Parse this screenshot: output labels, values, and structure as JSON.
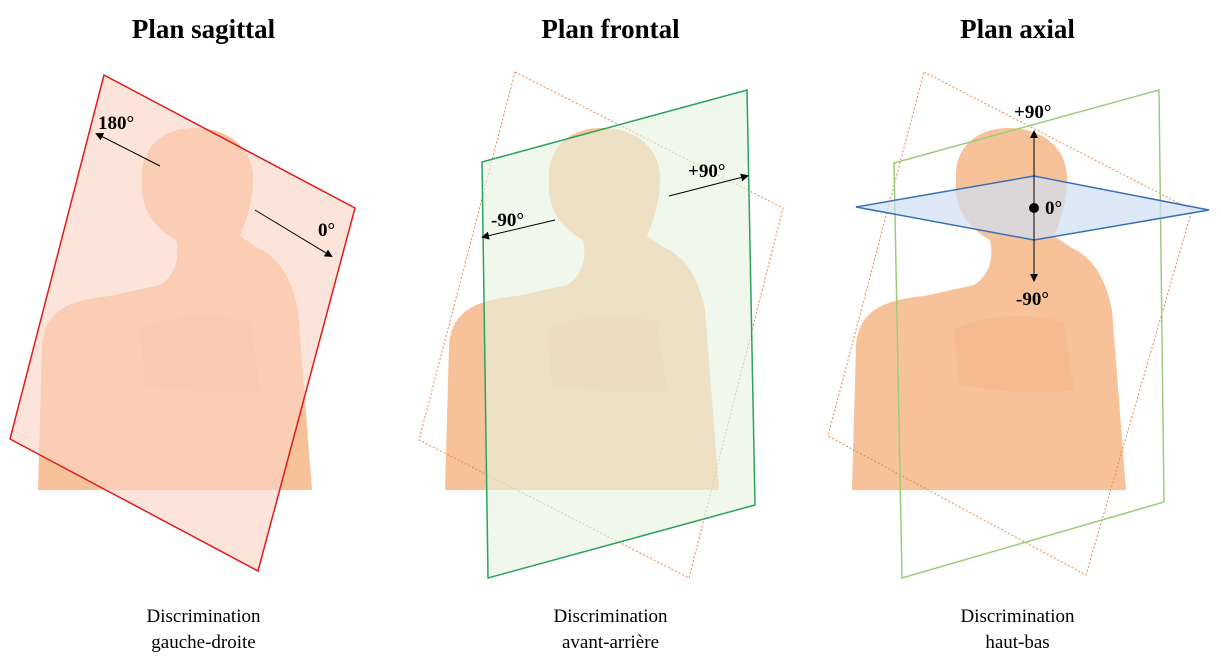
{
  "panels": [
    {
      "title": "Plan sagittal",
      "caption_line1": "Discrimination",
      "caption_line2": "gauche-droite",
      "labels": {
        "start": "180°",
        "end": "0°"
      },
      "plane_color": "#e31a1c"
    },
    {
      "title": "Plan frontal",
      "caption_line1": "Discrimination",
      "caption_line2": "avant-arrière",
      "labels": {
        "start": "-90°",
        "end": "+90°"
      },
      "plane_color": "#2ca25f"
    },
    {
      "title": "Plan axial",
      "caption_line1": "Discrimination",
      "caption_line2": "haut-bas",
      "labels": {
        "top": "+90°",
        "center": "0°",
        "bottom": "-90°"
      },
      "plane_color": "#3a6fb5"
    }
  ],
  "colors": {
    "body": "#f7c29a",
    "body_shade": "#f3b78b",
    "sagittal_fill": "#fbd3c5",
    "frontal_fill": "#e6f2df",
    "axial_fill": "#cfe0f3",
    "dotted_plane": "#e58a4a"
  }
}
